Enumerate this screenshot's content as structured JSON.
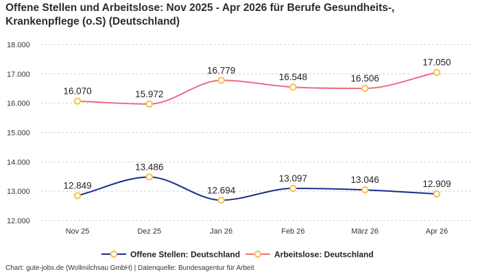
{
  "title_line1": "Offene Stellen und Arbeitslose: Nov 2025 - Apr 2026 für Berufe Gesundheits-,",
  "title_line2": "Krankenpflege (o.S) (Deutschland)",
  "footer": "Chart: gute-jobs.de (Wollmilchsau GmbH) | Datenquelle: Bundesagentur für Arbeit",
  "chart_data": {
    "type": "line",
    "categories": [
      "Nov 25",
      "Dez 25",
      "Jan 26",
      "Feb 26",
      "März 26",
      "Apr 26"
    ],
    "y_ticks": [
      12000,
      13000,
      14000,
      15000,
      16000,
      17000,
      18000
    ],
    "y_tick_labels": [
      "12.000",
      "13.000",
      "14.000",
      "15.000",
      "16.000",
      "17.000",
      "18.000"
    ],
    "ylim": [
      12000,
      18000
    ],
    "grid": true,
    "legend_placement": "bottom-center",
    "marker_color": "#f5c242",
    "series": [
      {
        "name": "Offene Stellen: Deutschland",
        "color": "#1a2b8c",
        "values": [
          12849,
          13486,
          12694,
          13097,
          13046,
          12909
        ],
        "labels": [
          "12.849",
          "13.486",
          "12.694",
          "13.097",
          "13.046",
          "12.909"
        ]
      },
      {
        "name": "Arbeitslose: Deutschland",
        "color": "#ee6b82",
        "values": [
          16070,
          15972,
          16779,
          16548,
          16506,
          17050
        ],
        "labels": [
          "16.070",
          "15.972",
          "16.779",
          "16.548",
          "16.506",
          "17.050"
        ]
      }
    ]
  }
}
